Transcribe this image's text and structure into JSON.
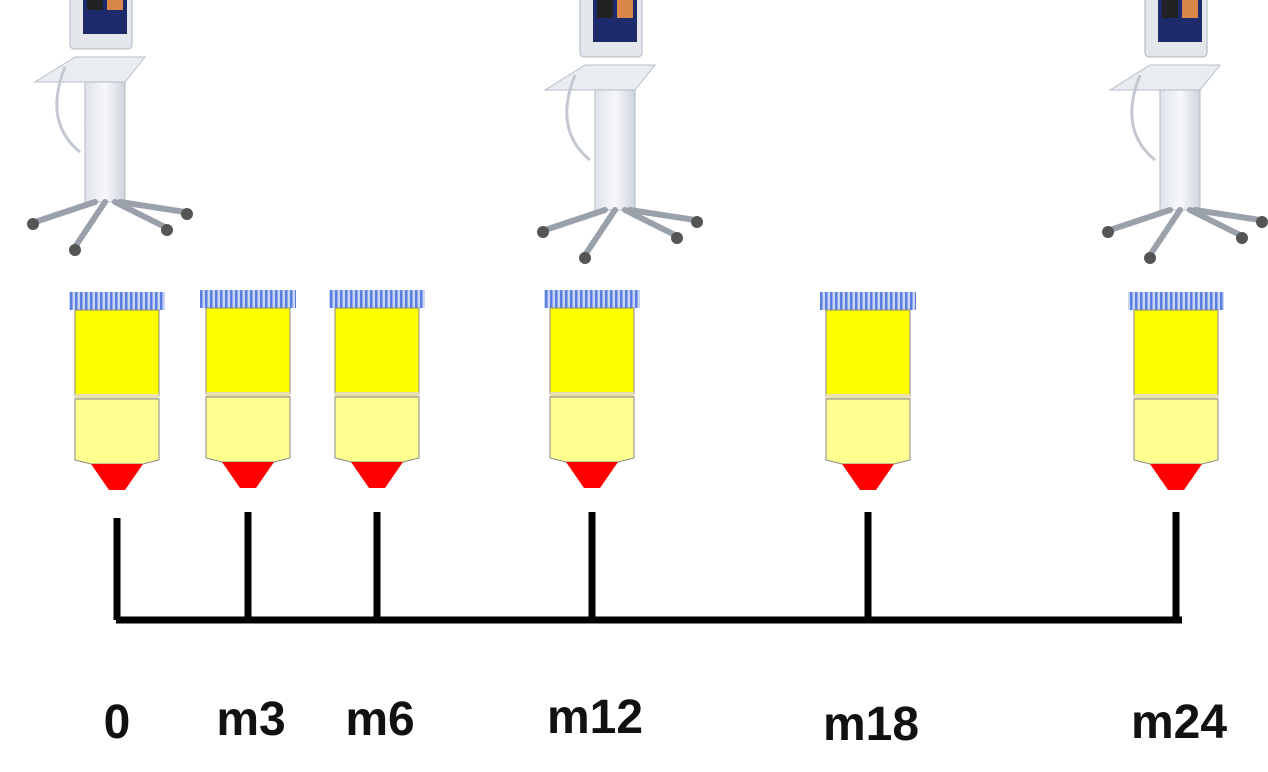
{
  "timepoints": [
    "0",
    "m3",
    "m6",
    "m12",
    "m18",
    "m24"
  ]
}
